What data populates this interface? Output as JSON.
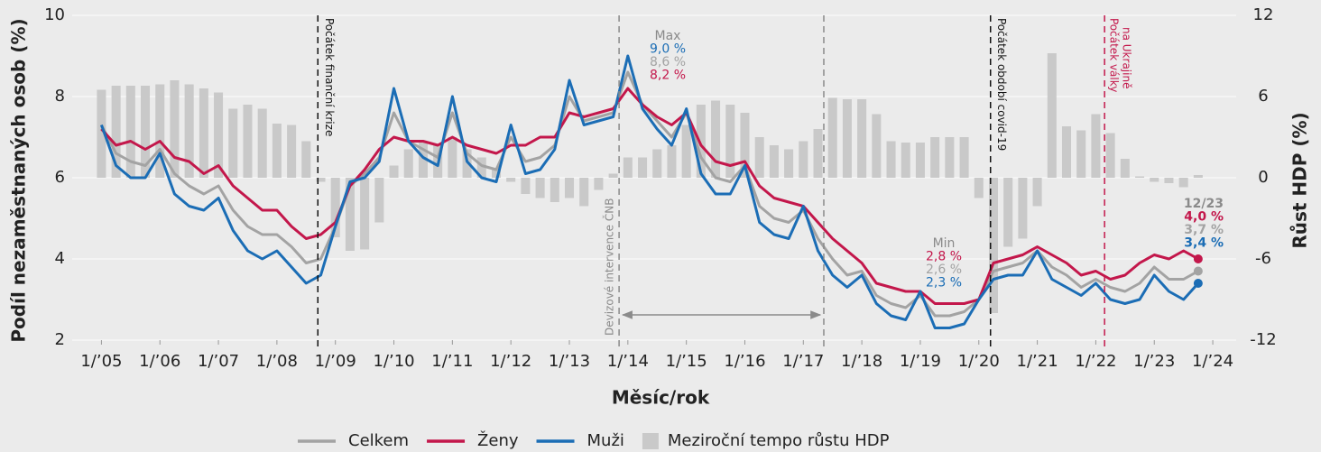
{
  "chart_data": {
    "type": "line",
    "y_label": "Podíl nezaměstnaných osob (%)",
    "y2_label": "Růst HDP (%)",
    "x_label": "Měsíc/rok",
    "x": [
      2005,
      2005.25,
      2005.5,
      2005.75,
      2006,
      2006.25,
      2006.5,
      2006.75,
      2007,
      2007.25,
      2007.5,
      2007.75,
      2008,
      2008.25,
      2008.5,
      2008.75,
      2009,
      2009.25,
      2009.5,
      2009.75,
      2010,
      2010.25,
      2010.5,
      2010.75,
      2011,
      2011.25,
      2011.5,
      2011.75,
      2012,
      2012.25,
      2012.5,
      2012.75,
      2013,
      2013.25,
      2013.5,
      2013.75,
      2014,
      2014.25,
      2014.5,
      2014.75,
      2015,
      2015.25,
      2015.5,
      2015.75,
      2016,
      2016.25,
      2016.5,
      2016.75,
      2017,
      2017.25,
      2017.5,
      2017.75,
      2018,
      2018.25,
      2018.5,
      2018.75,
      2019,
      2019.25,
      2019.5,
      2019.75,
      2020,
      2020.25,
      2020.5,
      2020.75,
      2021,
      2021.25,
      2021.5,
      2021.75,
      2022,
      2022.25,
      2022.5,
      2022.75,
      2023,
      2023.25,
      2023.5,
      2023.75
    ],
    "xlim": [
      2004.5,
      2024.4
    ],
    "xticks": [
      {
        "value": 2005,
        "label": "1/’05"
      },
      {
        "value": 2006,
        "label": "1/’06"
      },
      {
        "value": 2007,
        "label": "1/’07"
      },
      {
        "value": 2008,
        "label": "1/’08"
      },
      {
        "value": 2009,
        "label": "1/’09"
      },
      {
        "value": 2010,
        "label": "1/’10"
      },
      {
        "value": 2011,
        "label": "1/’11"
      },
      {
        "value": 2012,
        "label": "1/’12"
      },
      {
        "value": 2013,
        "label": "1/’13"
      },
      {
        "value": 2014,
        "label": "1/’14"
      },
      {
        "value": 2015,
        "label": "1/’15"
      },
      {
        "value": 2016,
        "label": "1/’16"
      },
      {
        "value": 2017,
        "label": "1/’17"
      },
      {
        "value": 2018,
        "label": "1/’18"
      },
      {
        "value": 2019,
        "label": "1/’19"
      },
      {
        "value": 2020,
        "label": "1/’20"
      },
      {
        "value": 2021,
        "label": "1/’21"
      },
      {
        "value": 2022,
        "label": "1/’22"
      },
      {
        "value": 2023,
        "label": "1/’23"
      },
      {
        "value": 2024,
        "label": "1/’24"
      }
    ],
    "ylim": [
      2,
      10
    ],
    "yticks": [
      2,
      4,
      6,
      8,
      10
    ],
    "y2lim": [
      -12,
      12
    ],
    "y2ticks": [
      -12,
      -6,
      0,
      6,
      12
    ],
    "grid": true,
    "series": [
      {
        "name": "Celkem",
        "color": "#a3a3a3",
        "values": [
          7.3,
          6.6,
          6.4,
          6.3,
          6.7,
          6.1,
          5.8,
          5.6,
          5.8,
          5.2,
          4.8,
          4.6,
          4.6,
          4.3,
          3.9,
          4.0,
          4.8,
          5.8,
          6.1,
          6.5,
          7.6,
          6.9,
          6.7,
          6.5,
          7.6,
          6.6,
          6.3,
          6.2,
          7.0,
          6.4,
          6.5,
          6.8,
          8.0,
          7.4,
          7.5,
          7.6,
          8.6,
          7.8,
          7.4,
          7.0,
          7.6,
          6.5,
          6.0,
          5.9,
          6.3,
          5.3,
          5.0,
          4.9,
          5.2,
          4.5,
          4.0,
          3.6,
          3.7,
          3.1,
          2.9,
          2.8,
          3.1,
          2.6,
          2.6,
          2.7,
          3.0,
          3.7,
          3.8,
          3.9,
          4.2,
          3.8,
          3.6,
          3.3,
          3.5,
          3.3,
          3.2,
          3.4,
          3.8,
          3.5,
          3.5,
          3.7
        ]
      },
      {
        "name": "Ženy",
        "color": "#c3174b",
        "values": [
          7.2,
          6.8,
          6.9,
          6.7,
          6.9,
          6.5,
          6.4,
          6.1,
          6.3,
          5.8,
          5.5,
          5.2,
          5.2,
          4.8,
          4.5,
          4.6,
          4.9,
          5.8,
          6.2,
          6.7,
          7.0,
          6.9,
          6.9,
          6.8,
          7.0,
          6.8,
          6.7,
          6.6,
          6.8,
          6.8,
          7.0,
          7.0,
          7.6,
          7.5,
          7.6,
          7.7,
          8.2,
          7.8,
          7.5,
          7.3,
          7.6,
          6.8,
          6.4,
          6.3,
          6.4,
          5.8,
          5.5,
          5.4,
          5.3,
          4.9,
          4.5,
          4.2,
          3.9,
          3.4,
          3.3,
          3.2,
          3.2,
          2.9,
          2.9,
          2.9,
          3.0,
          3.9,
          4.0,
          4.1,
          4.3,
          4.1,
          3.9,
          3.6,
          3.7,
          3.5,
          3.6,
          3.9,
          4.1,
          4.0,
          4.2,
          4.0
        ]
      },
      {
        "name": "Muži",
        "color": "#1b6db5",
        "values": [
          7.3,
          6.3,
          6.0,
          6.0,
          6.6,
          5.6,
          5.3,
          5.2,
          5.5,
          4.7,
          4.2,
          4.0,
          4.2,
          3.8,
          3.4,
          3.6,
          4.8,
          5.9,
          6.0,
          6.4,
          8.2,
          6.9,
          6.5,
          6.3,
          8.0,
          6.4,
          6.0,
          5.9,
          7.3,
          6.1,
          6.2,
          6.7,
          8.4,
          7.3,
          7.4,
          7.5,
          9.0,
          7.7,
          7.2,
          6.8,
          7.7,
          6.1,
          5.6,
          5.6,
          6.3,
          4.9,
          4.6,
          4.5,
          5.3,
          4.2,
          3.6,
          3.3,
          3.6,
          2.9,
          2.6,
          2.5,
          3.2,
          2.3,
          2.3,
          2.4,
          3.0,
          3.5,
          3.6,
          3.6,
          4.2,
          3.5,
          3.3,
          3.1,
          3.4,
          3.0,
          2.9,
          3.0,
          3.6,
          3.2,
          3.0,
          3.4
        ]
      },
      {
        "name": "Meziroční tempo růstu HDP",
        "type": "bar",
        "axis": "y2",
        "color": "#c9c9c9",
        "values": [
          6.5,
          6.8,
          6.8,
          6.8,
          6.9,
          7.2,
          6.9,
          6.6,
          6.3,
          5.1,
          5.4,
          5.1,
          4.0,
          3.9,
          2.7,
          -0.3,
          -4.4,
          -5.4,
          -5.3,
          -3.3,
          0.9,
          2.1,
          2.7,
          2.4,
          3.0,
          2.1,
          1.5,
          0.6,
          -0.3,
          -1.2,
          -1.5,
          -1.8,
          -1.5,
          -2.1,
          -0.9,
          0.3,
          1.5,
          1.5,
          2.1,
          2.4,
          3.9,
          5.4,
          5.7,
          5.4,
          4.8,
          3.0,
          2.4,
          2.1,
          2.7,
          3.6,
          5.9,
          5.8,
          5.8,
          4.7,
          2.7,
          2.6,
          2.6,
          3.0,
          3.0,
          3.0,
          -1.5,
          -10.0,
          -5.1,
          -4.5,
          -2.1,
          9.2,
          3.8,
          3.5,
          4.7,
          3.3,
          1.4,
          0.1,
          -0.3,
          -0.4,
          -0.7,
          0.2
        ]
      }
    ],
    "events": [
      {
        "label": "Počátek finanční krize",
        "x": 2008.7,
        "color": "#111111"
      },
      {
        "label": "Devizové intervence ČNB",
        "x": 2013.85,
        "color": "#8a8a8a"
      },
      {
        "x": 2017.35,
        "color": "#8a8a8a"
      },
      {
        "label": "Počátek období covid-19",
        "x": 2020.2,
        "color": "#111111"
      },
      {
        "label": "Počátek války",
        "label2": "na Ukrajině",
        "x": 2022.15,
        "color": "#c3174b"
      }
    ],
    "annotations": [
      {
        "title": "Max",
        "lines": [
          {
            "text": "9,0 %",
            "color": "#1b6db5"
          },
          {
            "text": "8,6 %",
            "color": "#a3a3a3"
          },
          {
            "text": "8,2 %",
            "color": "#c3174b"
          }
        ]
      },
      {
        "title": "Min",
        "lines": [
          {
            "text": "2,8 %",
            "color": "#c3174b"
          },
          {
            "text": "2,6 %",
            "color": "#a3a3a3"
          },
          {
            "text": "2,3 %",
            "color": "#1b6db5"
          }
        ]
      },
      {
        "title": "12/23",
        "lines": [
          {
            "text": "4,0 %",
            "color": "#c3174b"
          },
          {
            "text": "3,7 %",
            "color": "#a3a3a3"
          },
          {
            "text": "3,4 %",
            "color": "#1b6db5"
          }
        ]
      }
    ]
  }
}
